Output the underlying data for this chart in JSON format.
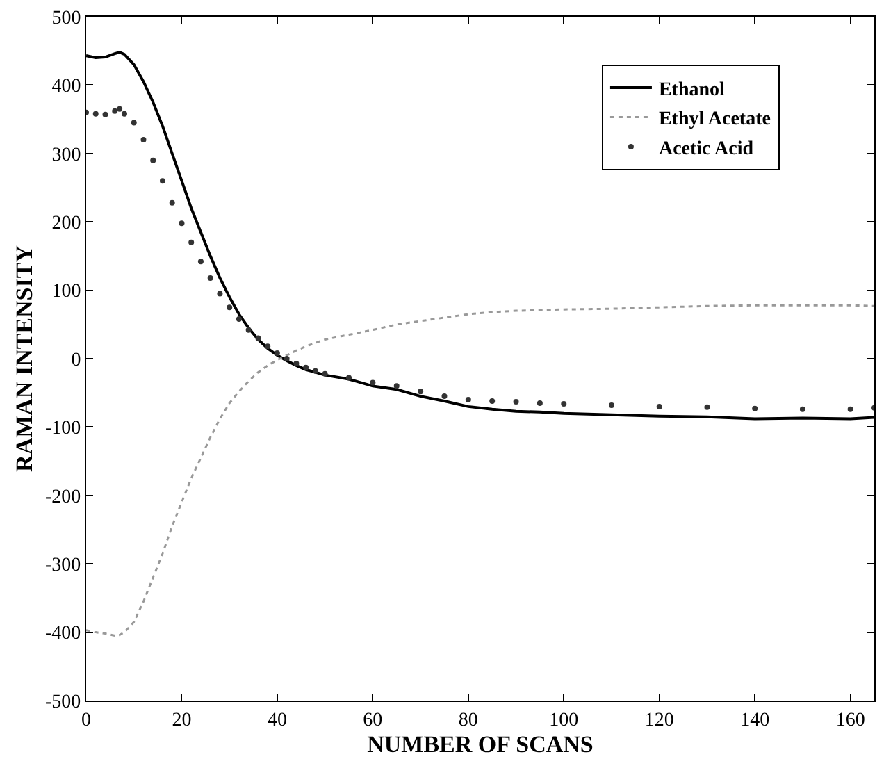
{
  "chart_data": {
    "type": "line",
    "xlabel": "NUMBER OF SCANS",
    "ylabel": "RAMAN INTENSITY",
    "xlim": [
      0,
      165
    ],
    "xticks": [
      0,
      20,
      40,
      60,
      80,
      100,
      120,
      140,
      160
    ],
    "ylim": [
      -500,
      500
    ],
    "yticks": [
      -500,
      -400,
      -300,
      -200,
      -100,
      0,
      100,
      200,
      300,
      400,
      500
    ],
    "legend": "top right",
    "x": [
      0,
      2,
      4,
      6,
      7,
      8,
      10,
      12,
      14,
      16,
      18,
      20,
      22,
      24,
      26,
      28,
      30,
      32,
      34,
      36,
      38,
      40,
      42,
      44,
      46,
      48,
      50,
      55,
      60,
      65,
      70,
      75,
      80,
      85,
      90,
      95,
      100,
      110,
      120,
      130,
      140,
      150,
      160,
      165
    ],
    "series": [
      {
        "name": "Ethanol",
        "color": "#000000",
        "line_style": "solid",
        "values": [
          443,
          440,
          441,
          446,
          448,
          445,
          430,
          405,
          375,
          340,
          300,
          260,
          220,
          185,
          150,
          118,
          90,
          65,
          45,
          28,
          15,
          5,
          -3,
          -10,
          -16,
          -20,
          -24,
          -30,
          -40,
          -45,
          -55,
          -62,
          -70,
          -74,
          -77,
          -78,
          -80,
          -82,
          -84,
          -85,
          -88,
          -87,
          -88,
          -86
        ]
      },
      {
        "name": "Ethyl Acetate",
        "color": "#999999",
        "line_style": "dotted",
        "values": [
          -397,
          -400,
          -402,
          -405,
          -404,
          -400,
          -385,
          -355,
          -320,
          -285,
          -245,
          -210,
          -175,
          -145,
          -115,
          -88,
          -65,
          -48,
          -33,
          -20,
          -10,
          -2,
          5,
          12,
          18,
          23,
          28,
          35,
          42,
          50,
          55,
          60,
          65,
          68,
          70,
          71,
          72,
          73,
          75,
          77,
          78,
          78,
          78,
          77
        ]
      },
      {
        "name": "Acetic Acid",
        "color": "#333333",
        "type": "scatter",
        "marker": "circle",
        "values": [
          360,
          358,
          357,
          362,
          365,
          358,
          345,
          320,
          290,
          260,
          228,
          198,
          170,
          142,
          118,
          95,
          75,
          58,
          42,
          30,
          18,
          8,
          0,
          -7,
          -13,
          -18,
          -22,
          -28,
          -35,
          -40,
          -48,
          -55,
          -60,
          -62,
          -63,
          -65,
          -66,
          -68,
          -70,
          -71,
          -73,
          -74,
          -74,
          -72
        ]
      }
    ]
  }
}
